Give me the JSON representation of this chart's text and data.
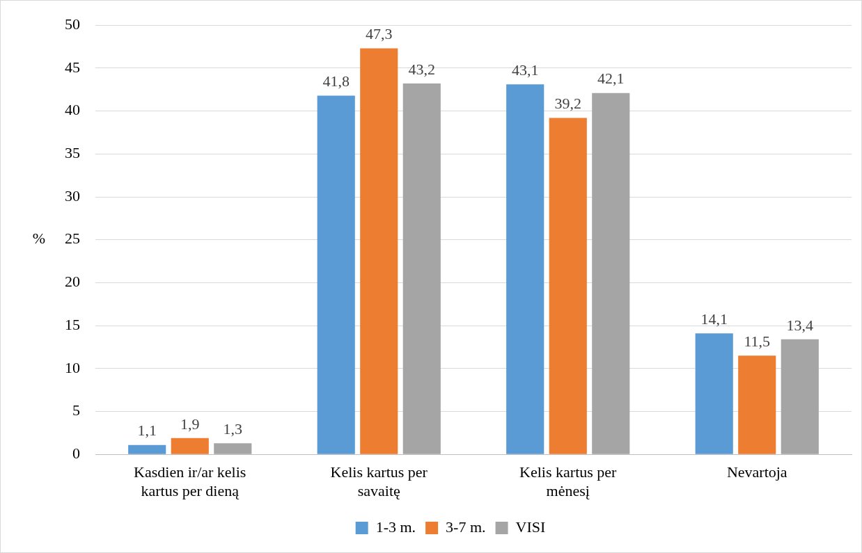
{
  "chart_data": {
    "type": "bar",
    "ylabel": "%",
    "categories": [
      "Kasdien ir/ar kelis kartus per dieną",
      "Kelis kartus per savaitę",
      "Kelis kartus per mėnesį",
      "Nevartoja"
    ],
    "series": [
      {
        "name": "1-3 m.",
        "color": "#5b9bd5",
        "values": [
          1.1,
          41.8,
          43.1,
          14.1
        ],
        "value_labels": [
          "1,1",
          "41,8",
          "43,1",
          "14,1"
        ]
      },
      {
        "name": "3-7 m.",
        "color": "#ed7d31",
        "values": [
          1.9,
          47.3,
          39.2,
          11.5
        ],
        "value_labels": [
          "1,9",
          "47,3",
          "39,2",
          "11,5"
        ]
      },
      {
        "name": "VISI",
        "color": "#a5a5a5",
        "values": [
          1.3,
          43.2,
          42.1,
          13.4
        ],
        "value_labels": [
          "1,3",
          "43,2",
          "42,1",
          "13,4"
        ]
      }
    ],
    "ylim": [
      0,
      50
    ],
    "yticks": [
      0,
      5,
      10,
      15,
      20,
      25,
      30,
      35,
      40,
      45,
      50
    ],
    "grid": "y",
    "legend": "bottom"
  }
}
